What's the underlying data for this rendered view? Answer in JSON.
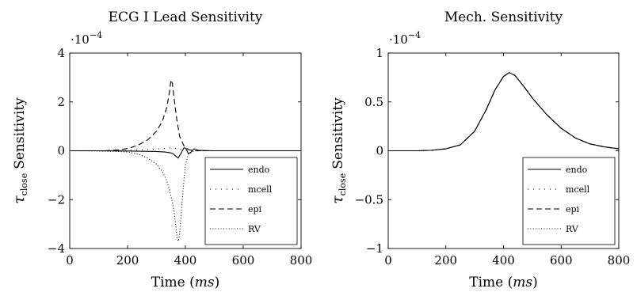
{
  "chart_data": [
    {
      "type": "line",
      "title": "ECG I Lead Sensitivity",
      "xlabel": "Time (ms)",
      "xlabel_plain": "Time ",
      "xlabel_unit": "ms",
      "ylabel_symbol": "τ",
      "ylabel_sub": "close",
      "ylabel_text": "Sensitivity",
      "y_multiplier": "·10",
      "y_multiplier_exp": "−4",
      "xlim": [
        0,
        800
      ],
      "ylim": [
        -4,
        4
      ],
      "xticks": [
        0,
        200,
        400,
        600,
        800
      ],
      "xtick_labels": [
        "0",
        "200",
        "400",
        "600",
        "800"
      ],
      "yticks": [
        -4,
        -2,
        0,
        2,
        4
      ],
      "ytick_labels": [
        "−4",
        "−2",
        "0",
        "2",
        "4"
      ],
      "legend_position": "bottom-right",
      "series": [
        {
          "name": "endo",
          "style": "solid",
          "x": [
            0,
            100,
            200,
            300,
            330,
            355,
            365,
            375,
            385,
            395,
            402,
            410,
            420,
            430,
            445,
            500,
            600,
            800
          ],
          "y": [
            0,
            0,
            -0.01,
            -0.03,
            -0.05,
            -0.1,
            -0.2,
            -0.3,
            -0.1,
            0.12,
            0.1,
            -0.12,
            -0.05,
            0.08,
            0.02,
            0,
            0,
            0
          ]
        },
        {
          "name": "mcell",
          "style": "dotted-sparse",
          "x": [
            0,
            150,
            200,
            250,
            300,
            330,
            350,
            365,
            380,
            400,
            415,
            430,
            460,
            800
          ],
          "y": [
            0,
            0,
            0.01,
            0.04,
            0.07,
            0.1,
            0.12,
            0.1,
            0.06,
            0.03,
            0.01,
            0,
            0,
            0
          ]
        },
        {
          "name": "epi",
          "style": "dashed",
          "x": [
            0,
            120,
            150,
            180,
            210,
            240,
            270,
            300,
            320,
            335,
            345,
            350,
            355,
            362,
            370,
            380,
            395,
            410,
            430,
            460,
            800
          ],
          "y": [
            0,
            0,
            0.02,
            0.05,
            0.12,
            0.25,
            0.45,
            0.8,
            1.2,
            1.75,
            2.4,
            2.9,
            2.75,
            2.05,
            1.3,
            0.6,
            0.2,
            0.05,
            0,
            0,
            0
          ]
        },
        {
          "name": "RV",
          "style": "dotted",
          "x": [
            0,
            150,
            200,
            240,
            270,
            300,
            320,
            335,
            345,
            355,
            362,
            368,
            372,
            376,
            380,
            384,
            390,
            395,
            400,
            410,
            430,
            800
          ],
          "y": [
            0,
            -0.02,
            -0.05,
            -0.15,
            -0.3,
            -0.55,
            -0.85,
            -1.2,
            -1.6,
            -2.1,
            -2.6,
            -3.2,
            -3.6,
            -3.7,
            -3.4,
            -2.8,
            -1.9,
            -1.2,
            -0.6,
            -0.15,
            0,
            0
          ]
        }
      ]
    },
    {
      "type": "line",
      "title": "Mech. Sensitivity",
      "xlabel": "Time (ms)",
      "xlabel_plain": "Time ",
      "xlabel_unit": "ms",
      "ylabel_symbol": "τ",
      "ylabel_sub": "close",
      "ylabel_text": "Sensitivity",
      "y_multiplier": "·10",
      "y_multiplier_exp": "−4",
      "xlim": [
        0,
        800
      ],
      "ylim": [
        -1,
        1
      ],
      "xticks": [
        0,
        200,
        400,
        600,
        800
      ],
      "xtick_labels": [
        "0",
        "200",
        "400",
        "600",
        "800"
      ],
      "yticks": [
        -1,
        -0.5,
        0,
        0.5,
        1
      ],
      "ytick_labels": [
        "−1",
        "−0.5",
        "0",
        "0.5",
        "1"
      ],
      "legend_position": "bottom-right",
      "series": [
        {
          "name": "endo",
          "style": "solid",
          "x": [
            0,
            100,
            150,
            200,
            250,
            300,
            340,
            370,
            400,
            420,
            440,
            470,
            500,
            550,
            600,
            650,
            700,
            750,
            800
          ],
          "y": [
            0,
            0,
            0.005,
            0.02,
            0.06,
            0.2,
            0.42,
            0.62,
            0.76,
            0.8,
            0.77,
            0.66,
            0.54,
            0.37,
            0.23,
            0.13,
            0.07,
            0.04,
            0.02
          ]
        },
        {
          "name": "mcell",
          "style": "dotted-sparse",
          "x": [
            0,
            100,
            150,
            200,
            250,
            300,
            340,
            370,
            400,
            420,
            440,
            470,
            500,
            550,
            600,
            650,
            700,
            750,
            800
          ],
          "y": [
            0,
            0,
            0.005,
            0.02,
            0.06,
            0.2,
            0.42,
            0.62,
            0.76,
            0.8,
            0.77,
            0.66,
            0.54,
            0.37,
            0.23,
            0.13,
            0.07,
            0.04,
            0.02
          ]
        },
        {
          "name": "epi",
          "style": "dashed",
          "x": [
            0,
            100,
            150,
            200,
            250,
            300,
            340,
            370,
            400,
            420,
            440,
            470,
            500,
            550,
            600,
            650,
            700,
            750,
            800
          ],
          "y": [
            0,
            0,
            0.005,
            0.02,
            0.06,
            0.2,
            0.42,
            0.62,
            0.76,
            0.8,
            0.77,
            0.66,
            0.54,
            0.37,
            0.23,
            0.13,
            0.07,
            0.04,
            0.02
          ]
        },
        {
          "name": "RV",
          "style": "dotted",
          "x": [
            0,
            100,
            150,
            200,
            250,
            300,
            340,
            370,
            400,
            420,
            440,
            470,
            500,
            550,
            600,
            650,
            700,
            750,
            800
          ],
          "y": [
            0,
            0,
            0.005,
            0.02,
            0.06,
            0.2,
            0.42,
            0.62,
            0.76,
            0.8,
            0.77,
            0.66,
            0.54,
            0.37,
            0.23,
            0.13,
            0.07,
            0.04,
            0.02
          ]
        }
      ]
    }
  ]
}
